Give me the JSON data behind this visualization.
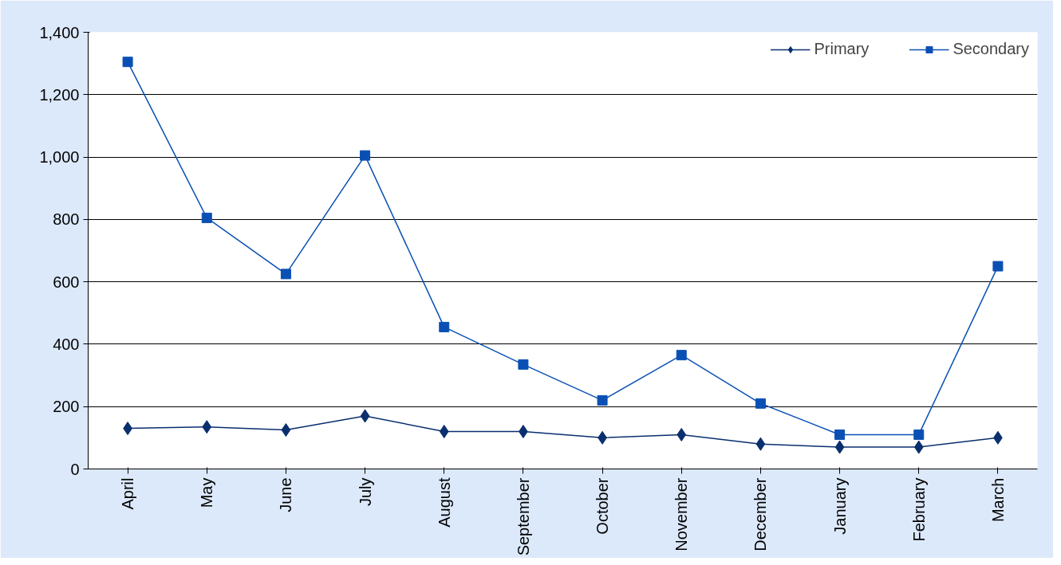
{
  "chart_data": {
    "type": "line",
    "categories": [
      "April",
      "May",
      "June",
      "July",
      "August",
      "September",
      "October",
      "November",
      "December",
      "January",
      "February",
      "March"
    ],
    "series": [
      {
        "name": "Primary",
        "color": "#0a2f6e",
        "marker": "diamond",
        "values": [
          130,
          135,
          125,
          170,
          120,
          120,
          100,
          110,
          80,
          70,
          70,
          100
        ]
      },
      {
        "name": "Secondary",
        "color": "#0a50b4",
        "marker": "square",
        "values": [
          1305,
          805,
          625,
          1005,
          455,
          335,
          220,
          365,
          210,
          110,
          110,
          650
        ]
      }
    ],
    "ylim": [
      0,
      1400
    ],
    "yticks": [
      0,
      {
        "value": 200,
        "label": "200"
      },
      {
        "value": 400,
        "label": "400"
      },
      {
        "value": 600,
        "label": "600"
      },
      {
        "value": 800,
        "label": "800"
      },
      {
        "value": 1000,
        "label": "1,000"
      },
      {
        "value": 1200,
        "label": "1,200"
      },
      {
        "value": 1400,
        "label": "1,400"
      }
    ],
    "grid": "y",
    "legend": "top right",
    "line_style": "solid"
  }
}
